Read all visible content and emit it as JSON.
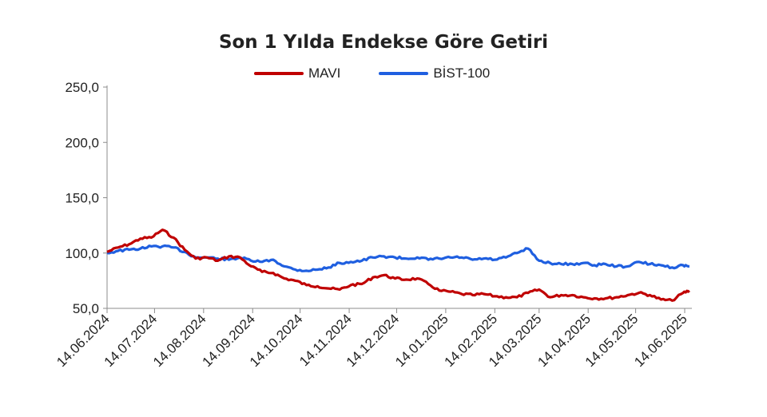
{
  "chart_data": {
    "type": "line",
    "title": "Son 1 Yılda Endekse Göre Getiri",
    "ylim": [
      50,
      250
    ],
    "yticks": [
      "250,0",
      "200,0",
      "150,0",
      "100,0",
      "50,0"
    ],
    "ytick_values": [
      250,
      200,
      150,
      100,
      50
    ],
    "x_labels": [
      "14.06.2024",
      "14.07.2024",
      "14.08.2024",
      "14.09.2024",
      "14.10.2024",
      "14.11.2024",
      "14.12.2024",
      "14.01.2025",
      "14.02.2025",
      "14.03.2025",
      "14.04.2025",
      "14.05.2025",
      "14.06.2025"
    ],
    "series": [
      {
        "name": "MAVI",
        "color": "#c00000",
        "x": [
          "14.06.2024",
          "21.06.2024",
          "28.06.2024",
          "05.07.2024",
          "12.07.2024",
          "19.07.2024",
          "26.07.2024",
          "02.08.2024",
          "09.08.2024",
          "16.08.2024",
          "23.08.2024",
          "30.08.2024",
          "06.09.2024",
          "13.09.2024",
          "20.09.2024",
          "27.09.2024",
          "04.10.2024",
          "11.10.2024",
          "18.10.2024",
          "25.10.2024",
          "01.11.2024",
          "08.11.2024",
          "15.11.2024",
          "22.11.2024",
          "29.11.2024",
          "06.12.2024",
          "13.12.2024",
          "20.12.2024",
          "27.12.2024",
          "03.01.2025",
          "10.01.2025",
          "17.01.2025",
          "24.01.2025",
          "31.01.2025",
          "07.02.2025",
          "14.02.2025",
          "21.02.2025",
          "28.02.2025",
          "07.03.2025",
          "14.03.2025",
          "21.03.2025",
          "28.03.2025",
          "04.04.2025",
          "11.04.2025",
          "18.04.2025",
          "25.04.2025",
          "02.05.2025",
          "09.05.2025",
          "16.05.2025",
          "23.05.2025",
          "30.05.2025",
          "06.06.2025",
          "13.06.2025",
          "17.06.2025"
        ],
        "values": [
          101,
          105,
          108,
          113,
          114,
          121,
          114,
          103,
          95,
          96,
          93,
          97,
          96,
          88,
          83,
          82,
          77,
          75,
          71,
          70,
          68,
          67,
          71,
          72,
          78,
          80,
          77,
          76,
          77,
          72,
          66,
          65,
          63,
          62,
          63,
          61,
          60,
          60,
          64,
          67,
          60,
          62,
          62,
          60,
          59,
          59,
          60,
          62,
          64,
          62,
          58,
          57,
          64,
          66
        ]
      },
      {
        "name": "BİST-100",
        "color": "#1f5fe0",
        "x": [
          "14.06.2024",
          "21.06.2024",
          "28.06.2024",
          "05.07.2024",
          "12.07.2024",
          "19.07.2024",
          "26.07.2024",
          "02.08.2024",
          "09.08.2024",
          "16.08.2024",
          "23.08.2024",
          "30.08.2024",
          "06.09.2024",
          "13.09.2024",
          "20.09.2024",
          "27.09.2024",
          "04.10.2024",
          "11.10.2024",
          "18.10.2024",
          "25.10.2024",
          "01.11.2024",
          "08.11.2024",
          "15.11.2024",
          "22.11.2024",
          "29.11.2024",
          "06.12.2024",
          "13.12.2024",
          "20.12.2024",
          "27.12.2024",
          "03.01.2025",
          "10.01.2025",
          "17.01.2025",
          "24.01.2025",
          "31.01.2025",
          "07.02.2025",
          "14.02.2025",
          "21.02.2025",
          "28.02.2025",
          "07.03.2025",
          "14.03.2025",
          "21.03.2025",
          "28.03.2025",
          "04.04.2025",
          "11.04.2025",
          "18.04.2025",
          "25.04.2025",
          "02.05.2025",
          "09.05.2025",
          "16.05.2025",
          "23.05.2025",
          "30.05.2025",
          "06.06.2025",
          "13.06.2025",
          "17.06.2025"
        ],
        "values": [
          100,
          102,
          103,
          104,
          106,
          106,
          105,
          101,
          96,
          96,
          95,
          94,
          96,
          93,
          92,
          94,
          88,
          85,
          84,
          85,
          87,
          91,
          92,
          93,
          96,
          97,
          96,
          95,
          96,
          94,
          95,
          96,
          96,
          94,
          95,
          94,
          96,
          100,
          104,
          93,
          91,
          90,
          90,
          91,
          89,
          90,
          88,
          88,
          92,
          90,
          89,
          87,
          89,
          88
        ]
      }
    ]
  }
}
